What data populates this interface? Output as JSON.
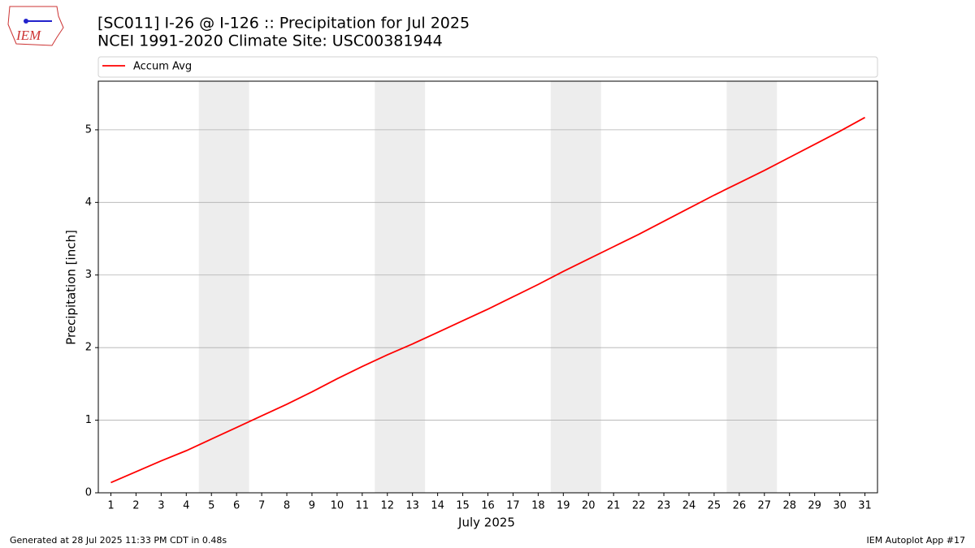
{
  "logo": "IEM",
  "footer_left": "Generated at 28 Jul 2025 11:33 PM CDT in 0.48s",
  "footer_right": "IEM Autoplot App #17",
  "chart_data": {
    "type": "line",
    "title": "[SC011] I-26 @ I-126  :: Precipitation for Jul 2025",
    "subtitle": "NCEI 1991-2020 Climate Site: USC00381944",
    "x_label": "July 2025",
    "y_label": "Precipitation [inch]",
    "x": [
      1,
      2,
      3,
      4,
      5,
      6,
      7,
      8,
      9,
      10,
      11,
      12,
      13,
      14,
      15,
      16,
      17,
      18,
      19,
      20,
      21,
      22,
      23,
      24,
      25,
      26,
      27,
      28,
      29,
      30,
      31
    ],
    "series": [
      {
        "name": "Accum Avg",
        "color": "#ff0000",
        "values": [
          0.14,
          0.29,
          0.44,
          0.58,
          0.74,
          0.9,
          1.06,
          1.22,
          1.39,
          1.57,
          1.74,
          1.9,
          2.05,
          2.21,
          2.37,
          2.53,
          2.7,
          2.87,
          3.05,
          3.22,
          3.39,
          3.56,
          3.74,
          3.92,
          4.1,
          4.27,
          4.44,
          4.62,
          4.8,
          4.98,
          5.17
        ]
      }
    ],
    "shaded_spans": [
      [
        4.5,
        6.5
      ],
      [
        11.5,
        13.5
      ],
      [
        18.5,
        20.5
      ],
      [
        25.5,
        27.5
      ]
    ],
    "shade_color": "#ededed",
    "xlim": [
      0.5,
      31.5
    ],
    "xticks": [
      1,
      2,
      3,
      4,
      5,
      6,
      7,
      8,
      9,
      10,
      11,
      12,
      13,
      14,
      15,
      16,
      17,
      18,
      19,
      20,
      21,
      22,
      23,
      24,
      25,
      26,
      27,
      28,
      29,
      30,
      31
    ],
    "ylim": [
      0,
      5.67
    ],
    "yticks": [
      0,
      1,
      2,
      3,
      4,
      5
    ],
    "grid": "y"
  }
}
